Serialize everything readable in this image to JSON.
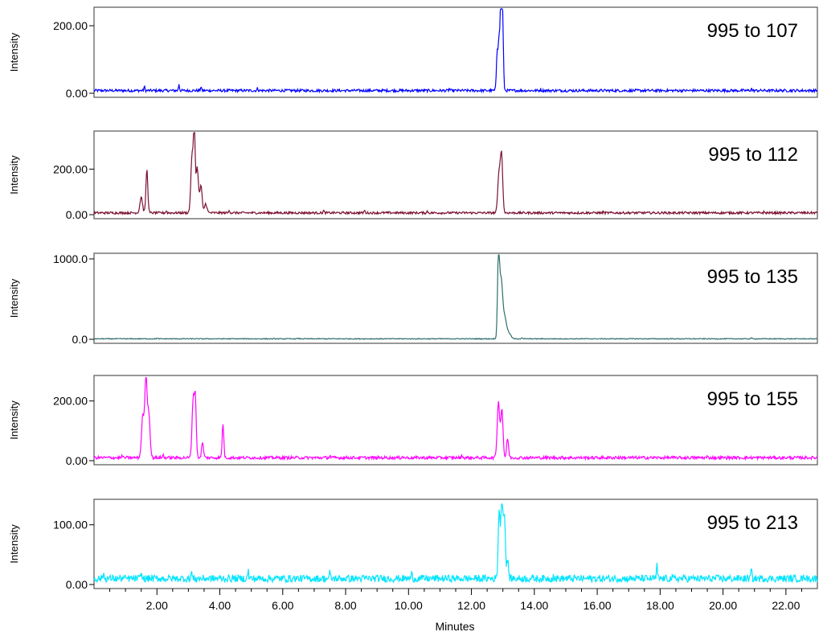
{
  "chart_data": {
    "type": "line",
    "xlabel": "Minutes",
    "xlim": [
      0,
      23
    ],
    "xticks": [
      2,
      4,
      6,
      8,
      10,
      12,
      14,
      16,
      18,
      20,
      22
    ],
    "xtick_labels": [
      "2.00",
      "4.00",
      "6.00",
      "8.00",
      "10.00",
      "12.00",
      "14.00",
      "16.00",
      "18.00",
      "20.00",
      "22.00"
    ],
    "panels": [
      {
        "name": "995 to 107",
        "ylabel": "Intensity",
        "color": "#0000ff",
        "ylim": [
          0,
          250
        ],
        "yticks": [
          0,
          200
        ],
        "ytick_labels": [
          "0.00",
          "200.00"
        ],
        "baseline": 8,
        "noise": 4,
        "peaks": [
          [
            12.82,
            120,
            0.025
          ],
          [
            12.87,
            110,
            0.02
          ],
          [
            12.93,
            245,
            0.03
          ],
          [
            12.99,
            215,
            0.025
          ]
        ],
        "spikes": [
          [
            1.6,
            20
          ],
          [
            2.7,
            28
          ],
          [
            3.4,
            20
          ],
          [
            5.2,
            15
          ],
          [
            11.3,
            14
          ],
          [
            14.2,
            12
          ],
          [
            20.9,
            14
          ]
        ]
      },
      {
        "name": "995 to 112",
        "ylabel": "Intensity",
        "color": "#7b1030",
        "ylim": [
          0,
          360
        ],
        "yticks": [
          0,
          200
        ],
        "ytick_labels": [
          "0.00",
          "200.00"
        ],
        "baseline": 8,
        "noise": 5,
        "peaks": [
          [
            1.5,
            70,
            0.04
          ],
          [
            1.68,
            190,
            0.03
          ],
          [
            3.12,
            260,
            0.04
          ],
          [
            3.19,
            355,
            0.025
          ],
          [
            3.28,
            200,
            0.04
          ],
          [
            3.4,
            120,
            0.035
          ],
          [
            3.55,
            40,
            0.04
          ],
          [
            12.88,
            180,
            0.04
          ],
          [
            12.96,
            245,
            0.035
          ]
        ],
        "spikes": [
          [
            2.3,
            18
          ],
          [
            4.3,
            22
          ],
          [
            7.3,
            18
          ],
          [
            8.6,
            20
          ],
          [
            10.6,
            16
          ],
          [
            16.2,
            12
          ],
          [
            21.3,
            12
          ]
        ]
      },
      {
        "name": "995 to 135",
        "ylabel": "Intensity",
        "color": "#2e6f6a",
        "ylim": [
          0,
          1050
        ],
        "yticks": [
          0,
          1000
        ],
        "ytick_labels": [
          "0.0",
          "1000.0"
        ],
        "baseline": 6,
        "noise": 5,
        "peaks": [
          [
            12.86,
            980,
            0.03
          ],
          [
            12.94,
            720,
            0.05
          ],
          [
            13.06,
            250,
            0.06
          ],
          [
            13.2,
            60,
            0.06
          ]
        ],
        "spikes": [
          [
            2.0,
            12
          ],
          [
            6.5,
            12
          ],
          [
            13.6,
            20
          ],
          [
            20.9,
            18
          ]
        ]
      },
      {
        "name": "995 to 155",
        "ylabel": "Intensity",
        "color": "#ff00ff",
        "ylim": [
          0,
          280
        ],
        "yticks": [
          0,
          200
        ],
        "ytick_labels": [
          "0.00",
          "200.00"
        ],
        "baseline": 10,
        "noise": 5,
        "peaks": [
          [
            1.55,
            140,
            0.04
          ],
          [
            1.65,
            270,
            0.035
          ],
          [
            1.74,
            150,
            0.04
          ],
          [
            3.15,
            190,
            0.035
          ],
          [
            3.22,
            195,
            0.03
          ],
          [
            3.45,
            50,
            0.03
          ],
          [
            4.1,
            115,
            0.025
          ],
          [
            12.86,
            185,
            0.04
          ],
          [
            12.97,
            160,
            0.035
          ],
          [
            13.15,
            65,
            0.03
          ]
        ],
        "spikes": [
          [
            0.9,
            18
          ],
          [
            2.2,
            20
          ],
          [
            7.5,
            18
          ],
          [
            9.8,
            16
          ],
          [
            11.7,
            18
          ],
          [
            16.6,
            14
          ],
          [
            19.5,
            14
          ]
        ]
      },
      {
        "name": "995 to 213",
        "ylabel": "Intensity",
        "color": "#00e5ff",
        "ylim": [
          0,
          140
        ],
        "yticks": [
          0,
          100
        ],
        "ytick_labels": [
          "0.00",
          "100.00"
        ],
        "baseline": 10,
        "noise": 6,
        "peaks": [
          [
            12.88,
            110,
            0.03
          ],
          [
            12.97,
            128,
            0.035
          ],
          [
            13.05,
            100,
            0.03
          ],
          [
            13.15,
            30,
            0.03
          ]
        ],
        "spikes": [
          [
            0.3,
            20
          ],
          [
            1.5,
            20
          ],
          [
            3.1,
            22
          ],
          [
            4.9,
            24
          ],
          [
            7.5,
            20
          ],
          [
            10.1,
            18
          ],
          [
            14.6,
            16
          ],
          [
            17.9,
            33
          ],
          [
            20.9,
            26
          ],
          [
            22.6,
            16
          ]
        ]
      }
    ]
  }
}
